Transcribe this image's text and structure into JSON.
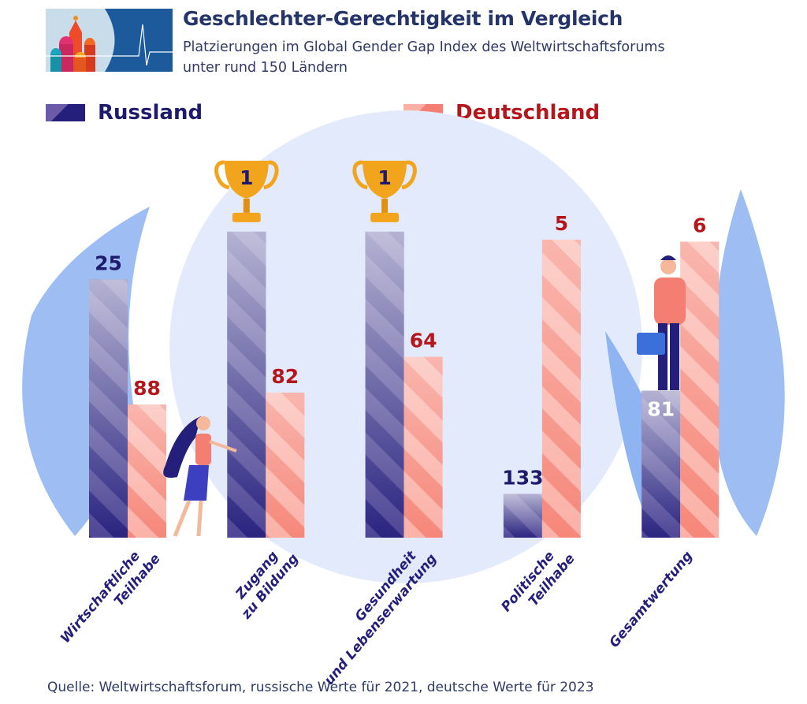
{
  "header": {
    "title": "Geschlechter-Gerechtigkeit im Vergleich",
    "subtitle_line1": "Platzierungen im Global Gender Gap Index des Weltwirtschaftsforums",
    "subtitle_line2": "unter rund 150 Ländern"
  },
  "source": "Quelle: Weltwirtschaftsforum, russische Werte für 2021, deutsche Werte für 2023",
  "colors": {
    "russland": "#241f7a",
    "deutschland": "#f47e72",
    "russland_label": "#1e1a6e",
    "deutschland_label": "#b5161b",
    "background_circle": "#e3eafb",
    "leaf": "#8fb4f2",
    "trophy": "#f2a51c"
  },
  "chart_data": {
    "type": "bar",
    "title": "Geschlechter-Gerechtigkeit im Vergleich",
    "subtitle": "Platzierungen im Global Gender Gap Index des Weltwirtschaftsforums unter rund 150 Ländern",
    "categories": [
      [
        "Wirtschaftliche",
        "Teilhabe"
      ],
      [
        "Zugang",
        "zu Bildung"
      ],
      [
        "Gesundheit",
        "und Lebenserwartung"
      ],
      [
        "Politische",
        "Teilhabe"
      ],
      [
        "Gesamtwertung"
      ]
    ],
    "series": [
      {
        "name": "Russland",
        "values": [
          25,
          1,
          1,
          133,
          81
        ]
      },
      {
        "name": "Deutschland",
        "values": [
          88,
          82,
          64,
          5,
          6
        ]
      }
    ],
    "value_axis": "rank (inverted: better rank = taller bar)",
    "legend_position": "top",
    "grid": false,
    "markers": {
      "rank_1": "trophy-icon"
    }
  }
}
